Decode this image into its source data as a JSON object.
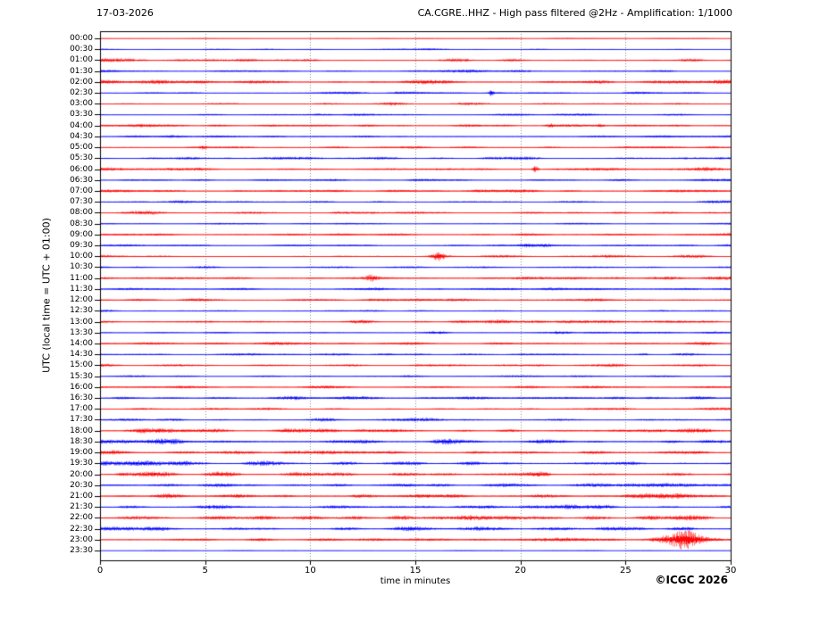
{
  "header": {
    "date_label": "17-03-2026",
    "title": "CA.CGRE..HHZ - High pass filtered @2Hz - Amplification: 1/1000"
  },
  "footer": {
    "copyright": "©ICGC 2026"
  },
  "chart_data": {
    "type": "line",
    "subtype": "helicorder-seismogram-day-plot",
    "title": "CA.CGRE..HHZ - High pass filtered @2Hz - Amplification: 1/1000",
    "date": "17-03-2026",
    "station": "CA.CGRE..HHZ",
    "filter": "High pass filtered @2Hz",
    "amplification": "1/1000",
    "xlabel": "time in minutes",
    "ylabel": "UTC (local time = UTC + 01:00)",
    "xlim": [
      0,
      30
    ],
    "x_ticks": [
      0,
      5,
      10,
      15,
      20,
      25,
      30
    ],
    "grid_minutes": [
      5,
      10,
      15,
      20,
      25
    ],
    "grid_style": "dotted",
    "minutes_per_line": 30,
    "colors": {
      "trace_red": "#ff0000",
      "trace_blue": "#0000ff",
      "grid": "#8a8a8a",
      "frame": "#000000",
      "background": "#ffffff"
    },
    "rows": [
      {
        "label": "00:00",
        "color": "red",
        "noise": 0.3,
        "events": []
      },
      {
        "label": "00:30",
        "color": "blue",
        "noise": 0.7,
        "events": []
      },
      {
        "label": "01:00",
        "color": "red",
        "noise": 1.4,
        "events": []
      },
      {
        "label": "01:30",
        "color": "blue",
        "noise": 1.1,
        "events": []
      },
      {
        "label": "02:00",
        "color": "red",
        "noise": 1.6,
        "events": []
      },
      {
        "label": "02:30",
        "color": "blue",
        "noise": 1.1,
        "events": [
          {
            "t": 18.6,
            "amp": 2.6,
            "w": 0.08
          }
        ]
      },
      {
        "label": "03:00",
        "color": "red",
        "noise": 1.3,
        "events": []
      },
      {
        "label": "03:30",
        "color": "blue",
        "noise": 1.1,
        "events": []
      },
      {
        "label": "04:00",
        "color": "red",
        "noise": 1.3,
        "events": [
          {
            "t": 21.4,
            "amp": 1.3,
            "w": 0.12
          },
          {
            "t": 23.8,
            "amp": 1.3,
            "w": 0.12
          }
        ]
      },
      {
        "label": "04:30",
        "color": "blue",
        "noise": 1.3,
        "events": []
      },
      {
        "label": "05:00",
        "color": "red",
        "noise": 1.3,
        "events": [
          {
            "t": 4.9,
            "amp": 1.4,
            "w": 0.12
          }
        ]
      },
      {
        "label": "05:30",
        "color": "blue",
        "noise": 1.1,
        "events": [
          {
            "t": 4.0,
            "amp": 0.8,
            "w": 0.6
          }
        ]
      },
      {
        "label": "06:00",
        "color": "red",
        "noise": 1.4,
        "events": [
          {
            "t": 20.7,
            "amp": 3.2,
            "w": 0.1
          }
        ]
      },
      {
        "label": "06:30",
        "color": "blue",
        "noise": 1.1,
        "events": []
      },
      {
        "label": "07:00",
        "color": "red",
        "noise": 1.4,
        "events": []
      },
      {
        "label": "07:30",
        "color": "blue",
        "noise": 1.0,
        "events": []
      },
      {
        "label": "08:00",
        "color": "red",
        "noise": 1.3,
        "events": []
      },
      {
        "label": "08:30",
        "color": "blue",
        "noise": 0.9,
        "events": []
      },
      {
        "label": "09:00",
        "color": "red",
        "noise": 1.2,
        "events": []
      },
      {
        "label": "09:30",
        "color": "blue",
        "noise": 1.1,
        "events": [
          {
            "t": 20.3,
            "amp": 1.2,
            "w": 0.25
          },
          {
            "t": 21.2,
            "amp": 1.0,
            "w": 0.2
          }
        ]
      },
      {
        "label": "10:00",
        "color": "red",
        "noise": 1.2,
        "events": [
          {
            "t": 16.1,
            "amp": 3.2,
            "w": 0.22
          }
        ]
      },
      {
        "label": "10:30",
        "color": "blue",
        "noise": 1.0,
        "events": []
      },
      {
        "label": "11:00",
        "color": "red",
        "noise": 1.2,
        "events": [
          {
            "t": 12.9,
            "amp": 2.2,
            "w": 0.18
          }
        ]
      },
      {
        "label": "11:30",
        "color": "blue",
        "noise": 1.0,
        "events": []
      },
      {
        "label": "12:00",
        "color": "red",
        "noise": 1.2,
        "events": []
      },
      {
        "label": "12:30",
        "color": "blue",
        "noise": 0.9,
        "events": []
      },
      {
        "label": "13:00",
        "color": "red",
        "noise": 1.4,
        "events": []
      },
      {
        "label": "13:30",
        "color": "blue",
        "noise": 1.0,
        "events": [
          {
            "t": 21.9,
            "amp": 1.0,
            "w": 0.35
          }
        ]
      },
      {
        "label": "14:00",
        "color": "red",
        "noise": 1.4,
        "events": []
      },
      {
        "label": "14:30",
        "color": "blue",
        "noise": 1.0,
        "events": [
          {
            "t": 25.9,
            "amp": 1.1,
            "w": 0.15
          }
        ]
      },
      {
        "label": "15:00",
        "color": "red",
        "noise": 1.2,
        "events": []
      },
      {
        "label": "15:30",
        "color": "blue",
        "noise": 0.9,
        "events": []
      },
      {
        "label": "16:00",
        "color": "red",
        "noise": 1.2,
        "events": []
      },
      {
        "label": "16:30",
        "color": "blue",
        "noise": 1.7,
        "events": []
      },
      {
        "label": "17:00",
        "color": "red",
        "noise": 1.2,
        "events": []
      },
      {
        "label": "17:30",
        "color": "blue",
        "noise": 1.3,
        "events": []
      },
      {
        "label": "18:00",
        "color": "red",
        "noise": 1.7,
        "events": []
      },
      {
        "label": "18:30",
        "color": "blue",
        "noise": 2.0,
        "events": []
      },
      {
        "label": "19:00",
        "color": "red",
        "noise": 1.8,
        "events": []
      },
      {
        "label": "19:30",
        "color": "blue",
        "noise": 2.2,
        "events": []
      },
      {
        "label": "20:00",
        "color": "red",
        "noise": 2.2,
        "events": []
      },
      {
        "label": "20:30",
        "color": "blue",
        "noise": 1.6,
        "events": [
          {
            "t": 27.0,
            "amp": 0.9,
            "w": 1.0
          }
        ]
      },
      {
        "label": "21:00",
        "color": "red",
        "noise": 2.0,
        "events": [
          {
            "t": 26.8,
            "amp": 1.0,
            "w": 0.8
          }
        ]
      },
      {
        "label": "21:30",
        "color": "blue",
        "noise": 1.8,
        "events": []
      },
      {
        "label": "22:00",
        "color": "red",
        "noise": 2.0,
        "events": []
      },
      {
        "label": "22:30",
        "color": "blue",
        "noise": 1.8,
        "events": []
      },
      {
        "label": "23:00",
        "color": "red",
        "noise": 1.6,
        "events": [
          {
            "t": 27.8,
            "amp": 6.0,
            "w": 0.45
          },
          {
            "t": 27.0,
            "amp": 1.8,
            "w": 0.7
          },
          {
            "t": 28.7,
            "amp": 1.8,
            "w": 0.7
          }
        ]
      },
      {
        "label": "23:30",
        "color": "blue",
        "noise": 0.35,
        "events": []
      }
    ]
  }
}
